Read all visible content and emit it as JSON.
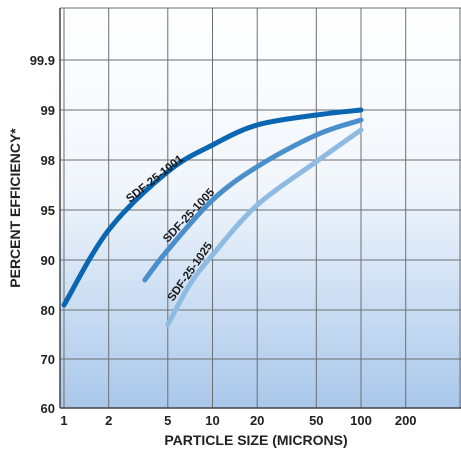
{
  "chart_data": {
    "type": "line",
    "xlabel": "PARTICLE SIZE (MICRONS)",
    "ylabel": "PERCENT EFFICIENCY*",
    "x_scale": "log",
    "y_scale": "nonlinear",
    "x_ticks": [
      "1",
      "2",
      "5",
      "10",
      "20",
      "50",
      "100",
      "200"
    ],
    "y_ticks": [
      "60",
      "70",
      "80",
      "90",
      "95",
      "98",
      "99",
      "99.9"
    ],
    "grid": true,
    "series": [
      {
        "name": "SDF-25-1001",
        "color": "#0a66b0",
        "points": [
          [
            1,
            81
          ],
          [
            2,
            93
          ],
          [
            5,
            97.3
          ],
          [
            10,
            98.3
          ],
          [
            20,
            98.7
          ],
          [
            50,
            98.9
          ],
          [
            100,
            99
          ]
        ]
      },
      {
        "name": "SDF-25-1005",
        "color": "#4a8fcc",
        "points": [
          [
            3.5,
            86
          ],
          [
            5,
            91
          ],
          [
            10,
            95.6
          ],
          [
            20,
            97.6
          ],
          [
            50,
            98.5
          ],
          [
            100,
            98.8
          ]
        ]
      },
      {
        "name": "SDF-25-1025",
        "color": "#8fbbe3",
        "points": [
          [
            5,
            77
          ],
          [
            7,
            85
          ],
          [
            10,
            90.5
          ],
          [
            20,
            95.3
          ],
          [
            50,
            97.9
          ],
          [
            100,
            98.6
          ]
        ]
      }
    ]
  }
}
